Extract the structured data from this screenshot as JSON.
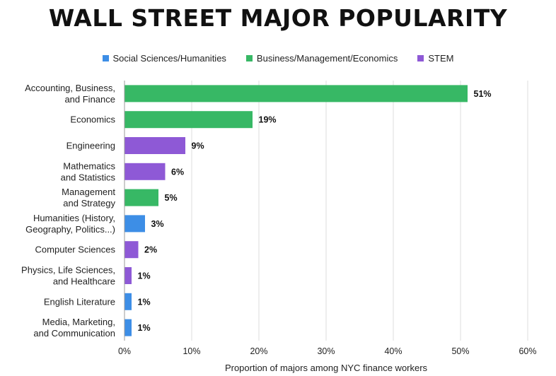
{
  "chart_data": {
    "type": "bar",
    "orientation": "horizontal",
    "title": "WALL STREET MAJOR POPULARITY",
    "xlabel": "Proportion of majors among NYC finance workers",
    "ylabel": "",
    "xlim": [
      0,
      60
    ],
    "x_ticks": [
      "0%",
      "10%",
      "20%",
      "30%",
      "40%",
      "50%",
      "60%"
    ],
    "grid": "vertical",
    "legend_position": "top",
    "legend": [
      {
        "name": "Social Sciences/Humanities",
        "color": "#3d8ee6"
      },
      {
        "name": "Business/Management/Economics",
        "color": "#37b865"
      },
      {
        "name": "STEM",
        "color": "#8e59d6"
      }
    ],
    "bars": [
      {
        "label": [
          "Accounting, Business,",
          "and Finance"
        ],
        "value": 51,
        "value_label": "51%",
        "group": 1
      },
      {
        "label": [
          "Economics"
        ],
        "value": 19,
        "value_label": "19%",
        "group": 1
      },
      {
        "label": [
          "Engineering"
        ],
        "value": 9,
        "value_label": "9%",
        "group": 2
      },
      {
        "label": [
          "Mathematics",
          "and Statistics"
        ],
        "value": 6,
        "value_label": "6%",
        "group": 2
      },
      {
        "label": [
          "Management",
          "and Strategy"
        ],
        "value": 5,
        "value_label": "5%",
        "group": 1
      },
      {
        "label": [
          "Humanities (History,",
          "Geography, Politics...)"
        ],
        "value": 3,
        "value_label": "3%",
        "group": 0
      },
      {
        "label": [
          "Computer Sciences"
        ],
        "value": 2,
        "value_label": "2%",
        "group": 2
      },
      {
        "label": [
          "Physics, Life Sciences,",
          "and Healthcare"
        ],
        "value": 1,
        "value_label": "1%",
        "group": 2
      },
      {
        "label": [
          "English Literature"
        ],
        "value": 1,
        "value_label": "1%",
        "group": 0
      },
      {
        "label": [
          "Media, Marketing,",
          "and Communication"
        ],
        "value": 1,
        "value_label": "1%",
        "group": 0
      }
    ]
  }
}
